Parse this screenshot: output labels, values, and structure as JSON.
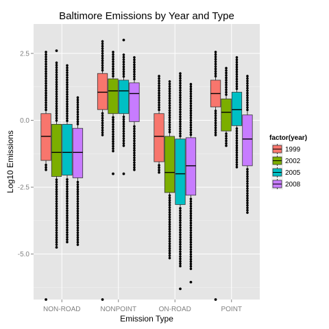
{
  "chart_data": {
    "type": "box",
    "title": "Baltimore Emissions by Year and Type",
    "xlabel": "Emission Type",
    "ylabel": "Log10 Emissions",
    "ylim": [
      -6.7,
      3.6
    ],
    "yticks": [
      {
        "value": 2.5,
        "label": "2.5"
      },
      {
        "value": 0.0,
        "label": "0.0"
      },
      {
        "value": -2.5,
        "label": "-2.5"
      },
      {
        "value": -5.0,
        "label": "-5.0"
      }
    ],
    "categories": [
      "NON-ROAD",
      "NONPOINT",
      "ON-ROAD",
      "POINT"
    ],
    "legend": {
      "title": "factor(year)",
      "position": "right",
      "entries": [
        {
          "label": "1999",
          "color": "#F8766D"
        },
        {
          "label": "2002",
          "color": "#7CAE00"
        },
        {
          "label": "2005",
          "color": "#00BFC4"
        },
        {
          "label": "2008",
          "color": "#C77CFF"
        }
      ]
    },
    "grid": true,
    "panel_background": "#e5e5e5",
    "series": [
      {
        "name": "1999",
        "color": "#F8766D",
        "boxes": [
          {
            "category": "NON-ROAD",
            "min": -1.9,
            "q1": -1.5,
            "median": -0.6,
            "q3": 0.25,
            "max": 2.6,
            "outliers": [
              -6.7
            ]
          },
          {
            "category": "NONPOINT",
            "min": -0.6,
            "q1": 0.4,
            "median": 1.05,
            "q3": 1.75,
            "max": 3.0,
            "outliers": [
              -6.7
            ]
          },
          {
            "category": "ON-ROAD",
            "min": -2.0,
            "q1": -1.55,
            "median": -0.6,
            "q3": 0.25,
            "max": 1.7,
            "outliers": []
          },
          {
            "category": "POINT",
            "min": -0.6,
            "q1": 0.5,
            "median": 1.0,
            "q3": 1.5,
            "max": 2.6,
            "outliers": [
              -6.7
            ]
          }
        ]
      },
      {
        "name": "2002",
        "color": "#7CAE00",
        "boxes": [
          {
            "category": "NON-ROAD",
            "min": -4.7,
            "q1": -2.1,
            "median": -1.2,
            "q3": -0.15,
            "max": 2.2,
            "outliers": [
              2.6,
              -4.75
            ]
          },
          {
            "category": "NONPOINT",
            "min": -1.2,
            "q1": 0.25,
            "median": 1.1,
            "q3": 1.55,
            "max": 2.6,
            "outliers": [
              -2.0
            ]
          },
          {
            "category": "ON-ROAD",
            "min": -5.2,
            "q1": -2.7,
            "median": -1.95,
            "q3": -0.6,
            "max": 1.5,
            "outliers": []
          },
          {
            "category": "POINT",
            "min": -1.0,
            "q1": -0.4,
            "median": 0.3,
            "q3": 0.8,
            "max": 2.0,
            "outliers": []
          }
        ]
      },
      {
        "name": "2005",
        "color": "#00BFC4",
        "boxes": [
          {
            "category": "NON-ROAD",
            "min": -4.6,
            "q1": -2.05,
            "median": -1.2,
            "q3": -0.15,
            "max": 2.1,
            "outliers": []
          },
          {
            "category": "NONPOINT",
            "min": -1.0,
            "q1": 0.25,
            "median": 1.1,
            "q3": 1.5,
            "max": 2.5,
            "outliers": [
              3.0,
              -2.0
            ]
          },
          {
            "category": "ON-ROAD",
            "min": -5.5,
            "q1": -3.15,
            "median": -2.0,
            "q3": -0.7,
            "max": 1.8,
            "outliers": [
              -6.3
            ]
          },
          {
            "category": "POINT",
            "min": -1.8,
            "q1": -0.2,
            "median": 0.4,
            "q3": 1.05,
            "max": 2.4,
            "outliers": []
          }
        ]
      },
      {
        "name": "2008",
        "color": "#C77CFF",
        "boxes": [
          {
            "category": "NON-ROAD",
            "min": -4.7,
            "q1": -2.15,
            "median": -1.2,
            "q3": -0.3,
            "max": 0.9,
            "outliers": []
          },
          {
            "category": "NONPOINT",
            "min": -1.9,
            "q1": -0.05,
            "median": 1.0,
            "q3": 1.4,
            "max": 2.4,
            "outliers": []
          },
          {
            "category": "ON-ROAD",
            "min": -5.6,
            "q1": -2.8,
            "median": -1.7,
            "q3": -0.65,
            "max": 1.4,
            "outliers": [
              -6.05
            ]
          },
          {
            "category": "POINT",
            "min": -3.5,
            "q1": -1.7,
            "median": -0.7,
            "q3": 0.2,
            "max": 1.7,
            "outliers": []
          }
        ]
      }
    ]
  }
}
